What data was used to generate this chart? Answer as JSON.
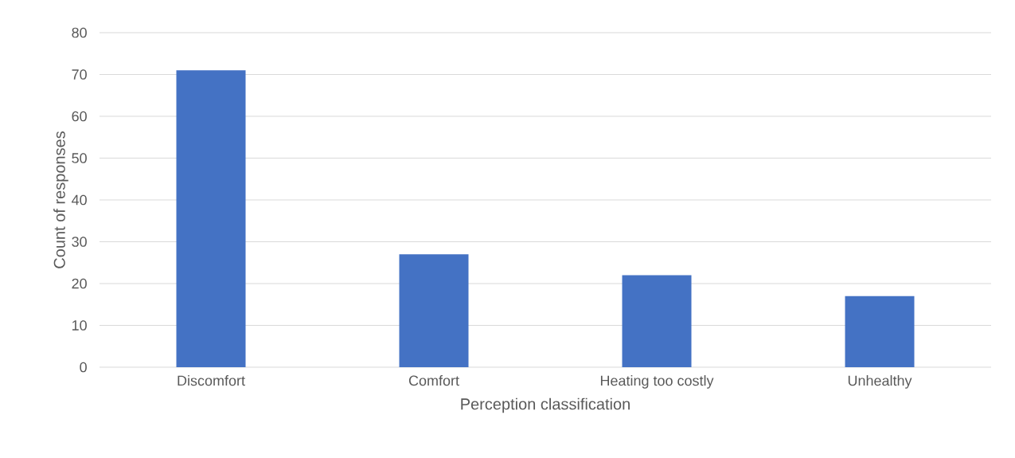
{
  "chart_data": {
    "type": "bar",
    "xlabel": "Perception classification",
    "ylabel": "Count of responses",
    "categories": [
      "Discomfort",
      "Comfort",
      "Heating too costly",
      "Unhealthy"
    ],
    "values": [
      71,
      27,
      22,
      17
    ],
    "color": "#4472c4",
    "ylim": [
      0,
      80
    ],
    "yticks": [
      0,
      10,
      20,
      30,
      40,
      50,
      60,
      70,
      80
    ],
    "grid": "y"
  }
}
